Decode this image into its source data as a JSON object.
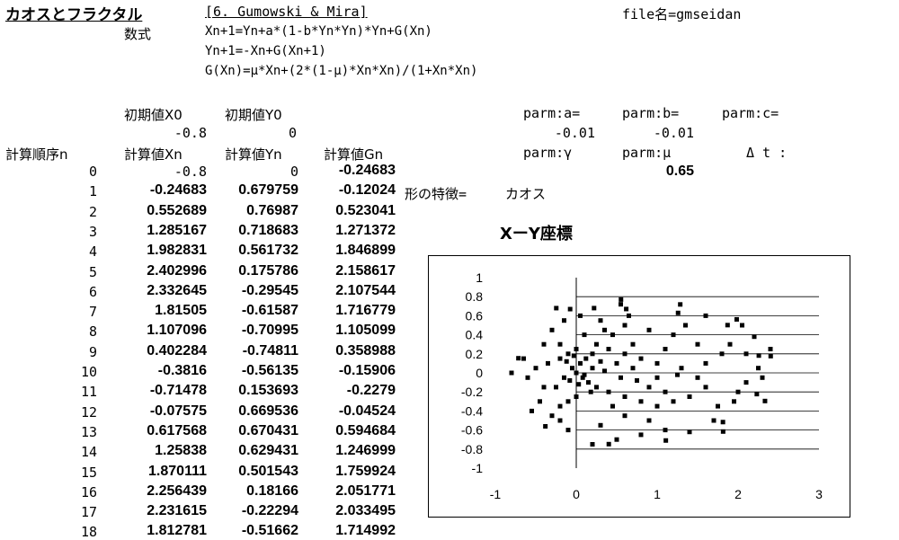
{
  "header": {
    "title": "カオスとフラクタル",
    "section": "[6. Gumowski & Mira]",
    "file_label": "file名=gmseidan",
    "formula_label": "数式",
    "formulas": [
      "Xn+1=Yn+a*(1-b*Yn*Yn)*Yn+G(Xn)",
      "Yn+1=-Xn+G(Xn+1)",
      "G(Xn)=μ*Xn+(2*(1-μ)*Xn*Xn)/(1+Xn*Xn)"
    ]
  },
  "initial": {
    "x0_label": "初期値X0",
    "y0_label": "初期値Y0",
    "x0": "-0.8",
    "y0": "0"
  },
  "params": {
    "a_label": "parm:a=",
    "b_label": "parm:b=",
    "c_label": "parm:c=",
    "a": "-0.01",
    "b": "-0.01",
    "gamma_label": "parm:γ",
    "mu_label": "parm:μ",
    "dt_label": "Δ t :",
    "mu": "0.65"
  },
  "table": {
    "headers": {
      "n": "計算順序n",
      "xn": "計算値Xn",
      "yn": "計算値Yn",
      "gn": "計算値Gn"
    },
    "rows": [
      {
        "n": "0",
        "xn": "-0.8",
        "yn": "0",
        "gn": "-0.24683"
      },
      {
        "n": "1",
        "xn": "-0.24683",
        "yn": "0.679759",
        "gn": "-0.12024"
      },
      {
        "n": "2",
        "xn": "0.552689",
        "yn": "0.76987",
        "gn": "0.523041"
      },
      {
        "n": "3",
        "xn": "1.285167",
        "yn": "0.718683",
        "gn": "1.271372"
      },
      {
        "n": "4",
        "xn": "1.982831",
        "yn": "0.561732",
        "gn": "1.846899"
      },
      {
        "n": "5",
        "xn": "2.402996",
        "yn": "0.175786",
        "gn": "2.158617"
      },
      {
        "n": "6",
        "xn": "2.332645",
        "yn": "-0.29545",
        "gn": "2.107544"
      },
      {
        "n": "7",
        "xn": "1.81505",
        "yn": "-0.61587",
        "gn": "1.716779"
      },
      {
        "n": "8",
        "xn": "1.107096",
        "yn": "-0.70995",
        "gn": "1.105099"
      },
      {
        "n": "9",
        "xn": "0.402284",
        "yn": "-0.74811",
        "gn": "0.358988"
      },
      {
        "n": "10",
        "xn": "-0.3816",
        "yn": "-0.56135",
        "gn": "-0.15906"
      },
      {
        "n": "11",
        "xn": "-0.71478",
        "yn": "0.153693",
        "gn": "-0.2279"
      },
      {
        "n": "12",
        "xn": "-0.07575",
        "yn": "0.669536",
        "gn": "-0.04524"
      },
      {
        "n": "13",
        "xn": "0.617568",
        "yn": "0.670431",
        "gn": "0.594684"
      },
      {
        "n": "14",
        "xn": "1.25838",
        "yn": "0.629431",
        "gn": "1.246999"
      },
      {
        "n": "15",
        "xn": "1.870111",
        "yn": "0.501543",
        "gn": "1.759924"
      },
      {
        "n": "16",
        "xn": "2.256439",
        "yn": "0.18166",
        "gn": "2.051771"
      },
      {
        "n": "17",
        "xn": "2.231615",
        "yn": "-0.22294",
        "gn": "2.033495"
      },
      {
        "n": "18",
        "xn": "1.812781",
        "yn": "-0.51662",
        "gn": "1.714992"
      }
    ]
  },
  "shape": {
    "label": "形の特徴=",
    "value": "カオス"
  },
  "chart_data": {
    "type": "scatter",
    "title": "XーY座標",
    "xlim": [
      -1,
      3
    ],
    "ylim": [
      -1,
      1
    ],
    "xticks": [
      "-1",
      "0",
      "1",
      "2",
      "3"
    ],
    "yticks": [
      "1",
      "0.8",
      "0.6",
      "0.4",
      "0.2",
      "0",
      "-0.2",
      "-0.4",
      "-0.6",
      "-0.8",
      "-1"
    ],
    "grid": "horizontal",
    "legend": "none",
    "marker_color": "#000000",
    "points": [
      [
        -0.8,
        0
      ],
      [
        -0.24683,
        0.679759
      ],
      [
        0.552689,
        0.76987
      ],
      [
        1.285167,
        0.718683
      ],
      [
        1.982831,
        0.561732
      ],
      [
        2.402996,
        0.175786
      ],
      [
        2.332645,
        -0.29545
      ],
      [
        1.81505,
        -0.61587
      ],
      [
        1.107096,
        -0.70995
      ],
      [
        0.402284,
        -0.74811
      ],
      [
        -0.3816,
        -0.56135
      ],
      [
        -0.71478,
        0.153693
      ],
      [
        -0.07575,
        0.669536
      ],
      [
        0.617568,
        0.670431
      ],
      [
        1.25838,
        0.629431
      ],
      [
        1.870111,
        0.501543
      ],
      [
        2.256439,
        0.18166
      ],
      [
        2.231615,
        -0.22294
      ],
      [
        1.812781,
        -0.51662
      ],
      [
        0.55,
        0.72
      ],
      [
        0.22,
        0.68
      ],
      [
        1.6,
        0.6
      ],
      [
        2.05,
        0.5
      ],
      [
        2.2,
        0.38
      ],
      [
        2.4,
        0.25
      ],
      [
        2.25,
        0.05
      ],
      [
        2.1,
        -0.1
      ],
      [
        1.95,
        -0.3
      ],
      [
        1.7,
        -0.5
      ],
      [
        1.4,
        -0.62
      ],
      [
        1.1,
        -0.6
      ],
      [
        0.8,
        -0.65
      ],
      [
        0.5,
        -0.7
      ],
      [
        0.2,
        -0.75
      ],
      [
        -0.1,
        -0.6
      ],
      [
        -0.3,
        -0.45
      ],
      [
        -0.45,
        -0.3
      ],
      [
        -0.55,
        -0.4
      ],
      [
        -0.4,
        0.3
      ],
      [
        -0.3,
        0.45
      ],
      [
        -0.15,
        0.55
      ],
      [
        0.05,
        0.6
      ],
      [
        0.3,
        0.55
      ],
      [
        0.6,
        0.5
      ],
      [
        0.9,
        0.45
      ],
      [
        1.2,
        0.4
      ],
      [
        1.5,
        0.3
      ],
      [
        1.8,
        0.2
      ],
      [
        1.6,
        0.1
      ],
      [
        1.3,
        0.05
      ],
      [
        1.0,
        0.1
      ],
      [
        0.8,
        0.15
      ],
      [
        0.6,
        0.2
      ],
      [
        0.4,
        0.25
      ],
      [
        0.3,
        0.12
      ],
      [
        0.2,
        0.05
      ],
      [
        0.1,
        -0.02
      ],
      [
        0.15,
        -0.1
      ],
      [
        0.25,
        -0.15
      ],
      [
        0.4,
        -0.2
      ],
      [
        0.6,
        -0.25
      ],
      [
        0.8,
        -0.3
      ],
      [
        1.0,
        -0.35
      ],
      [
        1.2,
        -0.3
      ],
      [
        1.4,
        -0.25
      ],
      [
        1.6,
        -0.15
      ],
      [
        1.5,
        -0.05
      ],
      [
        1.25,
        -0.02
      ],
      [
        1.0,
        -0.05
      ],
      [
        0.75,
        -0.08
      ],
      [
        0.55,
        -0.05
      ],
      [
        0.35,
        0.02
      ],
      [
        -0.2,
        0.15
      ],
      [
        -0.35,
        0.1
      ],
      [
        -0.5,
        0.05
      ],
      [
        -0.6,
        -0.05
      ],
      [
        -0.65,
        0.15
      ],
      [
        -0.1,
        0.2
      ],
      [
        0.0,
        0.25
      ],
      [
        0.0,
        -0.25
      ],
      [
        -0.1,
        -0.3
      ],
      [
        -0.2,
        -0.35
      ],
      [
        0.05,
        0.1
      ],
      [
        -0.05,
        0.05
      ],
      [
        0.08,
        -0.05
      ],
      [
        -0.08,
        -0.08
      ],
      [
        0.12,
        0.15
      ],
      [
        -0.12,
        0.12
      ],
      [
        0.0,
        0.0
      ],
      [
        0.03,
        -0.12
      ],
      [
        -0.03,
        0.18
      ],
      [
        0.18,
        -0.2
      ],
      [
        -0.25,
        -0.15
      ],
      [
        0.25,
        0.3
      ],
      [
        -0.2,
        0.3
      ],
      [
        0.45,
        0.4
      ],
      [
        0.7,
        0.3
      ],
      [
        1.1,
        0.25
      ],
      [
        1.9,
        0.3
      ],
      [
        2.1,
        0.2
      ],
      [
        2.3,
        -0.05
      ],
      [
        2.0,
        -0.2
      ],
      [
        1.75,
        -0.35
      ],
      [
        0.9,
        -0.5
      ],
      [
        0.6,
        -0.45
      ],
      [
        0.3,
        -0.55
      ],
      [
        -0.2,
        -0.5
      ],
      [
        -0.4,
        -0.15
      ],
      [
        0.1,
        0.4
      ],
      [
        0.35,
        0.45
      ],
      [
        0.65,
        0.6
      ],
      [
        1.35,
        0.5
      ],
      [
        0.5,
        0.1
      ],
      [
        0.7,
        0.05
      ],
      [
        0.9,
        -0.15
      ],
      [
        1.1,
        -0.2
      ],
      [
        0.45,
        -0.35
      ],
      [
        -0.15,
        -0.05
      ],
      [
        0.2,
        0.2
      ]
    ]
  }
}
